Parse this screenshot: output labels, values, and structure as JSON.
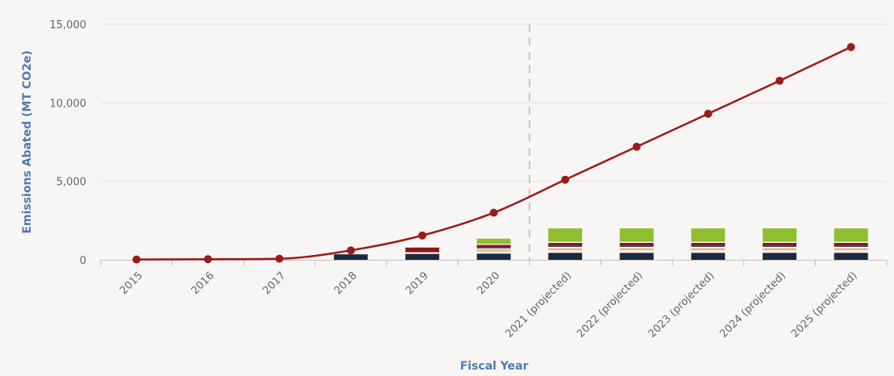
{
  "chart_data": {
    "type": "bar",
    "title": "",
    "xlabel": "Fiscal Year",
    "ylabel": "Emissions Abated (MT CO2e)",
    "ylim": [
      0,
      15000
    ],
    "yticks": [
      0,
      5000,
      10000,
      15000
    ],
    "ytick_labels": [
      "0",
      "5,000",
      "10,000",
      "15,000"
    ],
    "grid": true,
    "legend": "none",
    "projection_divider_after": "2020",
    "categories": [
      "2015",
      "2016",
      "2017",
      "2018",
      "2019",
      "2020",
      "2021 (projected)",
      "2022 (projected)",
      "2023 (projected)",
      "2024 (projected)",
      "2025 (projected)"
    ],
    "stacked_series": [
      {
        "color": "#1c2a3e",
        "values": [
          0,
          0,
          0,
          350,
          380,
          400,
          450,
          450,
          450,
          450,
          450
        ]
      },
      {
        "color": "#ffffff",
        "values": [
          0,
          0,
          0,
          0,
          100,
          120,
          150,
          150,
          150,
          150,
          150
        ]
      },
      {
        "color": "#f2b28a",
        "values": [
          0,
          0,
          0,
          0,
          0,
          150,
          150,
          150,
          150,
          150,
          150
        ]
      },
      {
        "color": "#ffffff",
        "values": [
          0,
          0,
          0,
          0,
          0,
          60,
          80,
          80,
          80,
          80,
          80
        ]
      },
      {
        "color": "#1c2a3e",
        "values": [
          0,
          0,
          0,
          0,
          0,
          60,
          80,
          80,
          80,
          80,
          80
        ]
      },
      {
        "color": "#8b1a1a",
        "values": [
          0,
          0,
          0,
          0,
          300,
          170,
          170,
          170,
          170,
          170,
          170
        ]
      },
      {
        "color": "#ffffff",
        "values": [
          0,
          0,
          0,
          0,
          0,
          60,
          70,
          70,
          70,
          70,
          70
        ]
      },
      {
        "color": "#8dbf2e",
        "values": [
          0,
          0,
          0,
          0,
          0,
          330,
          850,
          850,
          850,
          850,
          850
        ]
      }
    ],
    "line_series": {
      "color": "#9b1b1b",
      "values": [
        20,
        40,
        70,
        600,
        1550,
        3000,
        5100,
        7200,
        9300,
        11400,
        13550
      ]
    }
  }
}
